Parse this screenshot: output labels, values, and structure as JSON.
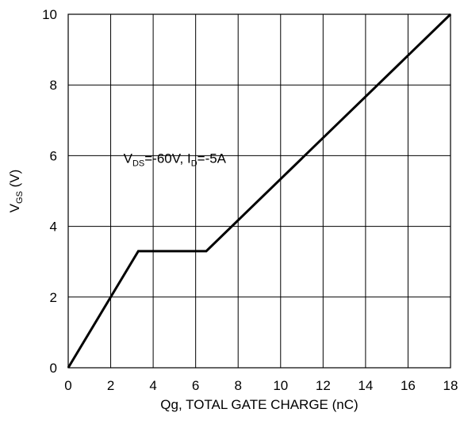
{
  "chart_data": {
    "type": "line",
    "title": "",
    "xlabel": "Qg, TOTAL GATE CHARGE (nC)",
    "ylabel": {
      "main": "V",
      "sub": "GS",
      "unit": " (V)"
    },
    "xlim": [
      0,
      18
    ],
    "ylim": [
      0,
      10
    ],
    "x_ticks": [
      0,
      2,
      4,
      6,
      8,
      10,
      12,
      14,
      16,
      18
    ],
    "y_ticks": [
      0,
      2,
      4,
      6,
      8,
      10
    ],
    "grid": true,
    "legend": "none",
    "line_color": "#000000",
    "annotation": {
      "v_main": "V",
      "v_sub": "DS",
      "v_val": "=-60V, I",
      "i_sub": "D",
      "i_val": "=-5A",
      "x": 2.6,
      "y": 5.8
    },
    "series": [
      {
        "x": [
          0,
          3.3,
          6.5,
          18
        ],
        "y": [
          0,
          3.3,
          3.3,
          10
        ]
      }
    ]
  }
}
